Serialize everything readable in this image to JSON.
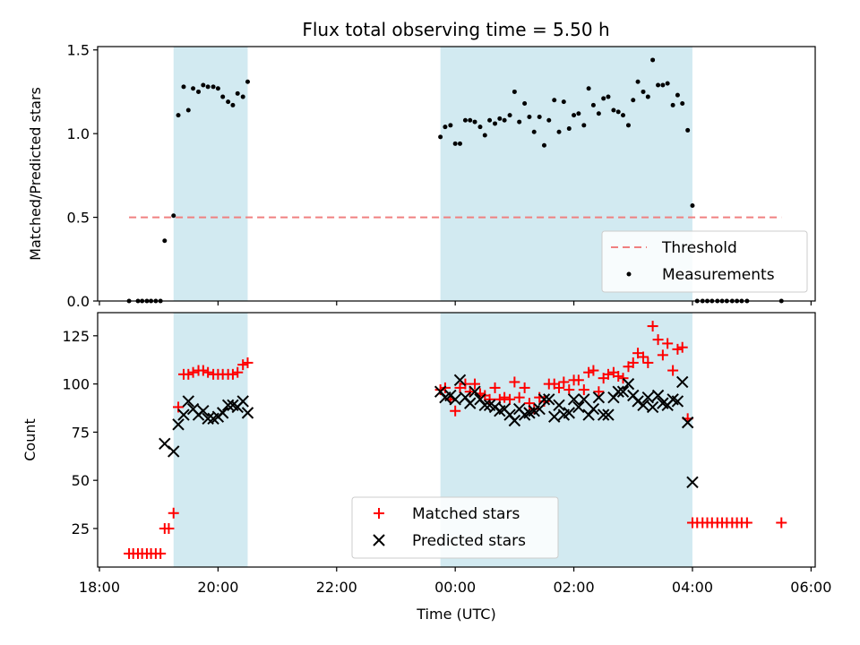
{
  "chart_data": [
    {
      "type": "scatter",
      "title": "Flux total observing time = 5.50 h",
      "xlabel": "",
      "ylabel": "Matched/Predicted stars",
      "ylim": [
        0,
        1.52
      ],
      "yticks": [
        "0.0",
        "0.5",
        "1.0",
        "1.5"
      ],
      "yticks_values": [
        0,
        0.5,
        1.0,
        1.5
      ],
      "legend_position": "lower-right",
      "threshold": {
        "name": "Threshold",
        "value": 0.5,
        "x_start": 18.5,
        "x_end": 29.5,
        "color": "#f08080"
      },
      "series": [
        {
          "name": "Measurements",
          "color": "#000000",
          "points": [
            [
              18.5,
              0
            ],
            [
              18.65,
              0
            ],
            [
              18.72,
              0
            ],
            [
              18.8,
              0
            ],
            [
              18.87,
              0
            ],
            [
              18.95,
              0
            ],
            [
              19.03,
              0
            ],
            [
              19.1,
              0.36
            ],
            [
              19.25,
              0.51
            ],
            [
              19.33,
              1.11
            ],
            [
              19.42,
              1.28
            ],
            [
              19.5,
              1.14
            ],
            [
              19.58,
              1.27
            ],
            [
              19.67,
              1.25
            ],
            [
              19.75,
              1.29
            ],
            [
              19.83,
              1.28
            ],
            [
              19.92,
              1.28
            ],
            [
              20.0,
              1.27
            ],
            [
              20.08,
              1.22
            ],
            [
              20.17,
              1.19
            ],
            [
              20.25,
              1.17
            ],
            [
              20.33,
              1.24
            ],
            [
              20.42,
              1.22
            ],
            [
              20.5,
              1.31
            ],
            [
              23.75,
              0.98
            ],
            [
              23.83,
              1.04
            ],
            [
              23.92,
              1.05
            ],
            [
              24.0,
              0.94
            ],
            [
              24.08,
              0.94
            ],
            [
              24.17,
              1.08
            ],
            [
              24.25,
              1.08
            ],
            [
              24.33,
              1.07
            ],
            [
              24.42,
              1.04
            ],
            [
              24.5,
              0.99
            ],
            [
              24.58,
              1.08
            ],
            [
              24.67,
              1.06
            ],
            [
              24.75,
              1.09
            ],
            [
              24.83,
              1.08
            ],
            [
              24.92,
              1.11
            ],
            [
              25.0,
              1.25
            ],
            [
              25.08,
              1.07
            ],
            [
              25.17,
              1.18
            ],
            [
              25.25,
              1.1
            ],
            [
              25.33,
              1.01
            ],
            [
              25.42,
              1.1
            ],
            [
              25.5,
              0.93
            ],
            [
              25.58,
              1.08
            ],
            [
              25.67,
              1.2
            ],
            [
              25.75,
              1.01
            ],
            [
              25.83,
              1.19
            ],
            [
              25.92,
              1.03
            ],
            [
              26.0,
              1.11
            ],
            [
              26.08,
              1.12
            ],
            [
              26.17,
              1.05
            ],
            [
              26.25,
              1.27
            ],
            [
              26.33,
              1.17
            ],
            [
              26.42,
              1.12
            ],
            [
              26.5,
              1.21
            ],
            [
              26.58,
              1.22
            ],
            [
              26.67,
              1.14
            ],
            [
              26.75,
              1.13
            ],
            [
              26.83,
              1.11
            ],
            [
              26.92,
              1.05
            ],
            [
              27.0,
              1.2
            ],
            [
              27.08,
              1.31
            ],
            [
              27.17,
              1.25
            ],
            [
              27.25,
              1.22
            ],
            [
              27.33,
              1.44
            ],
            [
              27.42,
              1.29
            ],
            [
              27.5,
              1.29
            ],
            [
              27.58,
              1.3
            ],
            [
              27.67,
              1.17
            ],
            [
              27.75,
              1.23
            ],
            [
              27.83,
              1.18
            ],
            [
              27.92,
              1.02
            ],
            [
              28.0,
              0.57
            ],
            [
              28.08,
              0
            ],
            [
              28.17,
              0
            ],
            [
              28.25,
              0
            ],
            [
              28.33,
              0
            ],
            [
              28.42,
              0
            ],
            [
              28.5,
              0
            ],
            [
              28.58,
              0
            ],
            [
              28.67,
              0
            ],
            [
              28.75,
              0
            ],
            [
              28.83,
              0
            ],
            [
              28.92,
              0
            ],
            [
              29.5,
              0
            ]
          ]
        }
      ]
    },
    {
      "type": "scatter",
      "title": "",
      "xlabel": "Time (UTC)",
      "ylabel": "Count",
      "ylim": [
        5,
        137
      ],
      "yticks": [
        "25",
        "50",
        "75",
        "100",
        "125"
      ],
      "yticks_values": [
        25,
        50,
        75,
        100,
        125
      ],
      "xlim": [
        17.97,
        30.07
      ],
      "xticks": [
        "18:00",
        "20:00",
        "22:00",
        "00:00",
        "02:00",
        "04:00",
        "06:00"
      ],
      "xticks_values": [
        18,
        20,
        22,
        24,
        26,
        28,
        30
      ],
      "legend_position": "lower-center",
      "series": [
        {
          "name": "Matched stars",
          "color": "#ff0000",
          "marker": "plus",
          "points": [
            [
              18.5,
              12
            ],
            [
              18.57,
              12
            ],
            [
              18.65,
              12
            ],
            [
              18.72,
              12
            ],
            [
              18.8,
              12
            ],
            [
              18.87,
              12
            ],
            [
              18.95,
              12
            ],
            [
              19.03,
              12
            ],
            [
              19.1,
              25
            ],
            [
              19.17,
              25
            ],
            [
              19.25,
              33
            ],
            [
              19.33,
              88
            ],
            [
              19.42,
              105
            ],
            [
              19.5,
              105
            ],
            [
              19.58,
              106
            ],
            [
              19.67,
              107
            ],
            [
              19.75,
              107
            ],
            [
              19.83,
              106
            ],
            [
              19.92,
              105
            ],
            [
              20.0,
              105
            ],
            [
              20.08,
              105
            ],
            [
              20.17,
              105
            ],
            [
              20.25,
              105
            ],
            [
              20.33,
              106
            ],
            [
              20.42,
              110
            ],
            [
              20.5,
              111
            ],
            [
              23.75,
              97
            ],
            [
              23.83,
              98
            ],
            [
              23.92,
              92
            ],
            [
              24.0,
              86
            ],
            [
              24.08,
              98
            ],
            [
              24.17,
              100
            ],
            [
              24.25,
              96
            ],
            [
              24.33,
              100
            ],
            [
              24.42,
              95
            ],
            [
              24.5,
              94
            ],
            [
              24.58,
              92
            ],
            [
              24.67,
              98
            ],
            [
              24.75,
              92
            ],
            [
              24.83,
              93
            ],
            [
              24.92,
              92
            ],
            [
              25.0,
              101
            ],
            [
              25.08,
              93
            ],
            [
              25.17,
              98
            ],
            [
              25.25,
              90
            ],
            [
              25.33,
              87
            ],
            [
              25.42,
              93
            ],
            [
              25.5,
              91
            ],
            [
              25.58,
              100
            ],
            [
              25.67,
              100
            ],
            [
              25.75,
              98
            ],
            [
              25.83,
              101
            ],
            [
              25.92,
              97
            ],
            [
              26.0,
              102
            ],
            [
              26.08,
              102
            ],
            [
              26.17,
              97
            ],
            [
              26.25,
              106
            ],
            [
              26.33,
              107
            ],
            [
              26.42,
              96
            ],
            [
              26.5,
              103
            ],
            [
              26.58,
              105
            ],
            [
              26.67,
              106
            ],
            [
              26.75,
              104
            ],
            [
              26.83,
              103
            ],
            [
              26.92,
              109
            ],
            [
              27.0,
              111
            ],
            [
              27.08,
              116
            ],
            [
              27.17,
              114
            ],
            [
              27.25,
              111
            ],
            [
              27.33,
              130
            ],
            [
              27.42,
              123
            ],
            [
              27.5,
              115
            ],
            [
              27.58,
              121
            ],
            [
              27.67,
              107
            ],
            [
              27.75,
              118
            ],
            [
              27.83,
              119
            ],
            [
              27.92,
              82
            ],
            [
              28.0,
              28
            ],
            [
              28.08,
              28
            ],
            [
              28.17,
              28
            ],
            [
              28.25,
              28
            ],
            [
              28.33,
              28
            ],
            [
              28.42,
              28
            ],
            [
              28.5,
              28
            ],
            [
              28.58,
              28
            ],
            [
              28.67,
              28
            ],
            [
              28.75,
              28
            ],
            [
              28.83,
              28
            ],
            [
              28.92,
              28
            ],
            [
              29.5,
              28
            ]
          ]
        },
        {
          "name": "Predicted stars",
          "color": "#000000",
          "marker": "x",
          "points": [
            [
              19.1,
              69
            ],
            [
              19.25,
              65
            ],
            [
              19.33,
              79
            ],
            [
              19.42,
              84
            ],
            [
              19.5,
              91
            ],
            [
              19.58,
              87
            ],
            [
              19.67,
              84
            ],
            [
              19.75,
              86
            ],
            [
              19.83,
              82
            ],
            [
              19.92,
              82
            ],
            [
              20.0,
              83
            ],
            [
              20.08,
              85
            ],
            [
              20.17,
              89
            ],
            [
              20.25,
              89
            ],
            [
              20.33,
              88
            ],
            [
              20.42,
              91
            ],
            [
              20.5,
              85
            ],
            [
              23.75,
              96
            ],
            [
              23.83,
              93
            ],
            [
              23.92,
              94
            ],
            [
              24.0,
              92
            ],
            [
              24.08,
              102
            ],
            [
              24.17,
              93
            ],
            [
              24.25,
              90
            ],
            [
              24.33,
              96
            ],
            [
              24.42,
              92
            ],
            [
              24.5,
              89
            ],
            [
              24.58,
              89
            ],
            [
              24.67,
              88
            ],
            [
              24.75,
              86
            ],
            [
              24.83,
              87
            ],
            [
              24.92,
              84
            ],
            [
              25.0,
              81
            ],
            [
              25.08,
              87
            ],
            [
              25.17,
              84
            ],
            [
              25.25,
              85
            ],
            [
              25.33,
              86
            ],
            [
              25.42,
              87
            ],
            [
              25.5,
              92
            ],
            [
              25.58,
              92
            ],
            [
              25.67,
              83
            ],
            [
              25.75,
              89
            ],
            [
              25.83,
              84
            ],
            [
              25.92,
              85
            ],
            [
              26.0,
              92
            ],
            [
              26.08,
              88
            ],
            [
              26.17,
              92
            ],
            [
              26.25,
              84
            ],
            [
              26.33,
              87
            ],
            [
              26.42,
              93
            ],
            [
              26.5,
              84
            ],
            [
              26.58,
              84
            ],
            [
              26.67,
              93
            ],
            [
              26.75,
              96
            ],
            [
              26.83,
              96
            ],
            [
              26.92,
              100
            ],
            [
              27.0,
              94
            ],
            [
              27.08,
              91
            ],
            [
              27.17,
              89
            ],
            [
              27.25,
              93
            ],
            [
              27.33,
              88
            ],
            [
              27.42,
              94
            ],
            [
              27.5,
              90
            ],
            [
              27.58,
              89
            ],
            [
              27.67,
              92
            ],
            [
              27.75,
              91
            ],
            [
              27.83,
              101
            ],
            [
              27.92,
              80
            ],
            [
              28.0,
              49
            ]
          ]
        }
      ]
    }
  ],
  "shaded_regions": [
    {
      "x_start": 19.25,
      "x_end": 20.5,
      "color": "#add8e6"
    },
    {
      "x_start": 23.75,
      "x_end": 28.0,
      "color": "#add8e6"
    }
  ]
}
